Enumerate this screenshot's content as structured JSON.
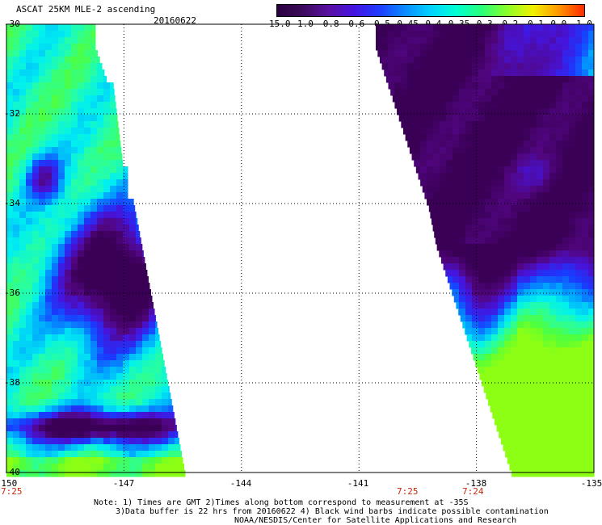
{
  "header": {
    "title": "ASCAT 25KM MLE-2 ascending",
    "date": "20160622"
  },
  "colorbar": {
    "labels": [
      "-15.0",
      "-1.0",
      "-0.8",
      "-0.6",
      "-0.5",
      "-0.45",
      "-0.4",
      "-0.35",
      "-0.3",
      "-0.2",
      "-0.1",
      "0.0",
      "1.0"
    ],
    "colors": [
      "#2a0040",
      "#3c0a5a",
      "#5a10a0",
      "#4414e0",
      "#1e3cff",
      "#0a8cff",
      "#00d2ff",
      "#00ffd2",
      "#28ff78",
      "#8cff28",
      "#f0f000",
      "#ff9600",
      "#ff2800"
    ]
  },
  "map": {
    "lon_range": [
      -150,
      -135
    ],
    "lat_range": [
      -40,
      -30
    ],
    "x_ticks": [
      "-150",
      "-147",
      "-144",
      "-141",
      "-138",
      "-135"
    ],
    "y_ticks": [
      "-30",
      "-32",
      "-34",
      "-36",
      "-38",
      "-40"
    ],
    "swath_times": [
      {
        "label": "7:25",
        "lon": -150
      },
      {
        "label": "7:25",
        "lon": -139.2
      },
      {
        "label": "7:24",
        "lon": -137.6
      }
    ]
  },
  "notes": {
    "line1": "Note: 1) Times are GMT 2)Times along bottom correspond to measurement at -35S",
    "line2": "3)Data buffer is 22 hrs from 20160622 4) Black wind barbs indicate possible contamination",
    "line3": "NOAA/NESDIS/Center for Satellite Applications and Research"
  }
}
